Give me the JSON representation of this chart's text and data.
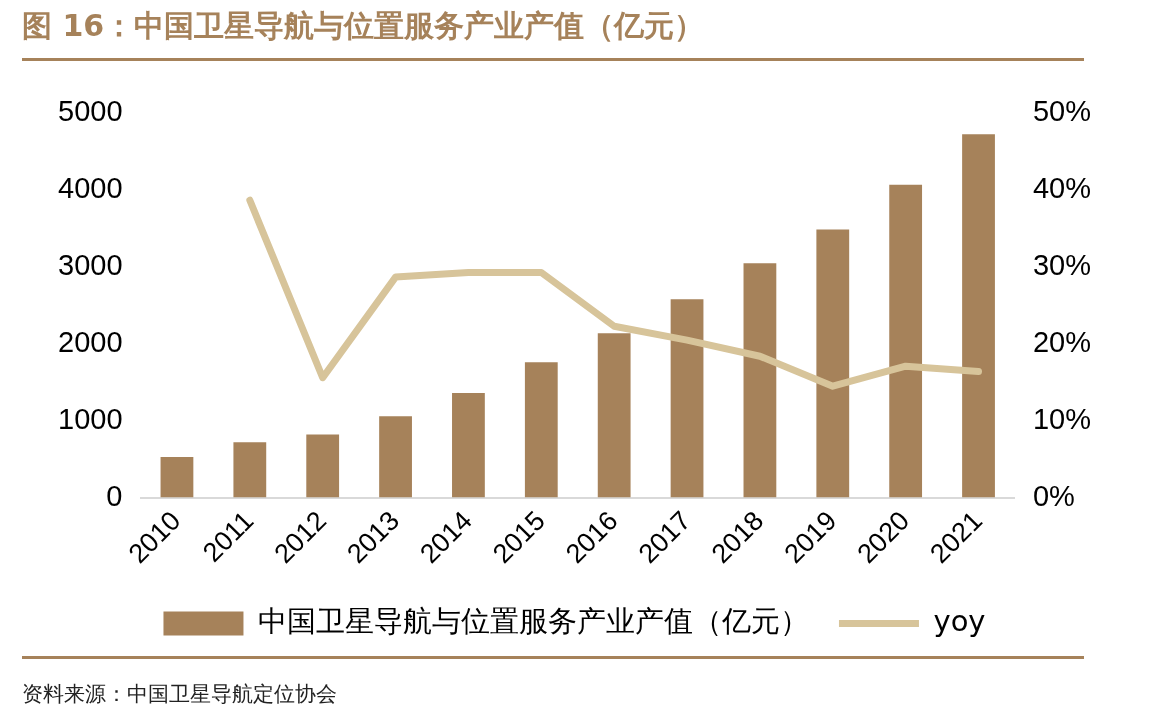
{
  "chart_data": {
    "type": "bar",
    "title": "图 16：中国卫星导航与位置服务产业产值（亿元）",
    "categories": [
      "2010",
      "2011",
      "2012",
      "2013",
      "2014",
      "2015",
      "2016",
      "2017",
      "2018",
      "2019",
      "2020",
      "2021"
    ],
    "series": [
      {
        "name": "中国卫星导航与位置服务产业产值（亿元）",
        "color": "#a6825a",
        "values": [
          530,
          720,
          820,
          1060,
          1360,
          1760,
          2140,
          2580,
          3050,
          3490,
          4070,
          4730
        ]
      },
      {
        "name": "yoy",
        "type": "line",
        "axis": "y2",
        "color": "#d7c49a",
        "values": [
          null,
          38.7,
          15.6,
          28.7,
          29.3,
          29.3,
          22.3,
          20.5,
          18.4,
          14.5,
          17.1,
          16.4
        ]
      }
    ],
    "ylim": [
      0,
      5000
    ],
    "yticks": [
      0,
      1000,
      2000,
      3000,
      4000,
      5000
    ],
    "y2lim": [
      0,
      50
    ],
    "y2ticks": [
      {
        "value": 0,
        "label": "0%"
      },
      {
        "value": 10,
        "label": "10%"
      },
      {
        "value": 20,
        "label": "20%"
      },
      {
        "value": 30,
        "label": "30%"
      },
      {
        "value": 40,
        "label": "40%"
      },
      {
        "value": 50,
        "label": "50%"
      }
    ],
    "grid": false,
    "legend": "bottom",
    "marker": "none",
    "line_style": "solid",
    "annotations": [
      "资料来源：中国卫星导航定位协会"
    ]
  }
}
